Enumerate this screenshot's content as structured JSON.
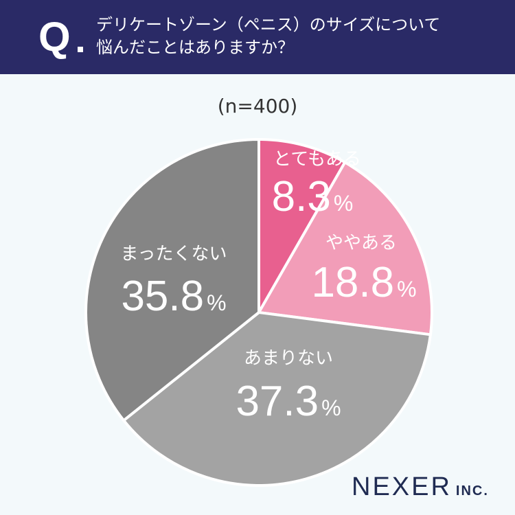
{
  "header": {
    "q_label": "Q",
    "question_line1": "デリケートゾーン（ペニス）のサイズについて",
    "question_line2": "悩んだことはありますか？"
  },
  "sample_size": "(n=400)",
  "logo": {
    "name": "NEXER",
    "suffix": "INC."
  },
  "colors": {
    "header_bg": "#2a2a66",
    "background": "#f3f9fb",
    "very": "#e8608f",
    "somewhat": "#f29db8",
    "not_much": "#a3a3a3",
    "not_at_all": "#858585"
  },
  "chart_data": {
    "type": "pie",
    "unit": "%",
    "slices": [
      {
        "label": "とてもある",
        "value": 8.3,
        "display": "8.3",
        "color": "#e8608f"
      },
      {
        "label": "ややある",
        "value": 18.8,
        "display": "18.8",
        "color": "#f29db8"
      },
      {
        "label": "あまりない",
        "value": 37.3,
        "display": "37.3",
        "color": "#a3a3a3"
      },
      {
        "label": "まったくない",
        "value": 35.8,
        "display": "35.8",
        "color": "#858585"
      }
    ]
  }
}
